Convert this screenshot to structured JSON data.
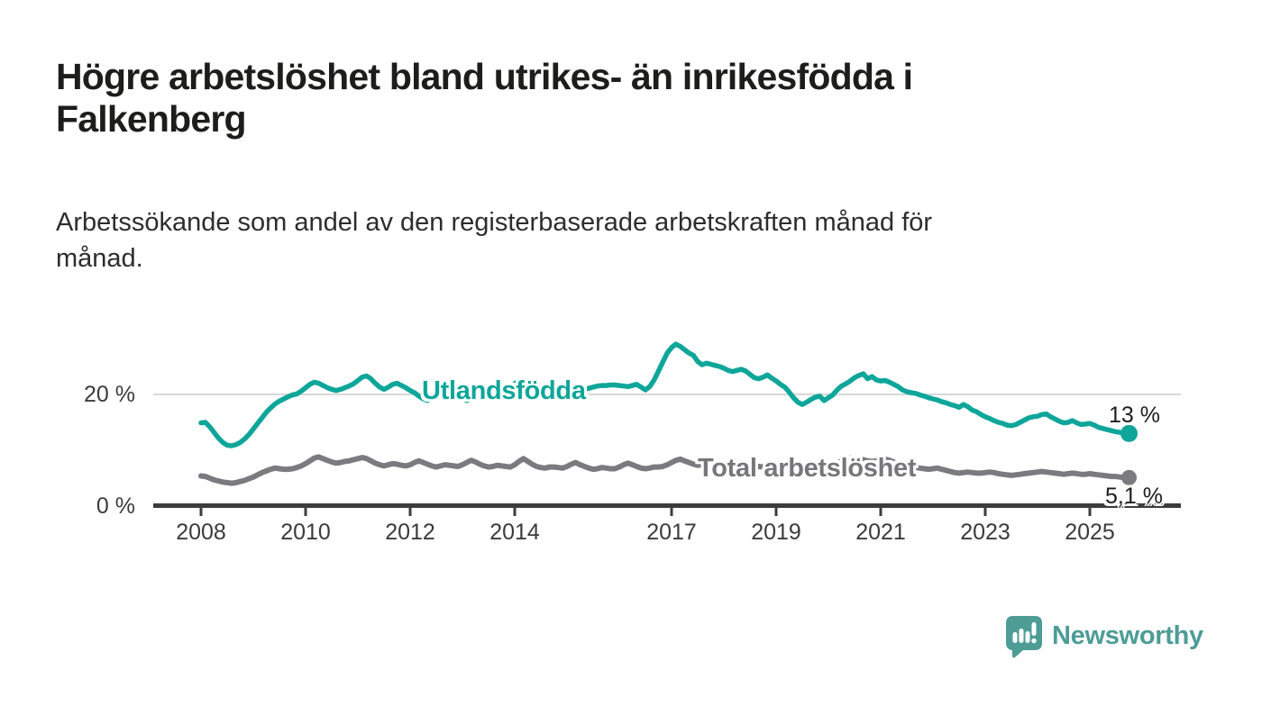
{
  "header": {
    "title": "Högre arbetslöshet bland utrikes- än inrikesfödda i\nFalkenberg",
    "subtitle": "Arbetssökande som andel av den registerbaserade arbetskraften månad för\nmånad."
  },
  "footer": {
    "brand": "Newsworthy",
    "brand_color": "#4d9c96",
    "logo_icon": "speech-bubble-with-bar-chart-and-exclamation"
  },
  "chart_data": {
    "type": "line",
    "unit": "%",
    "frequency": "monthly",
    "x_start": "2008-01",
    "x_end": "2025-10",
    "grid": "horizontal-at-20-only",
    "legend_position": "inline-labels-on-lines",
    "x_axis": {
      "ticks": [
        2008,
        2010,
        2012,
        2014,
        2017,
        2019,
        2021,
        2023,
        2025
      ]
    },
    "y_axis": {
      "labels": [
        "0 %",
        "20 %"
      ],
      "tick_values": [
        0,
        20
      ],
      "range": [
        0,
        32
      ],
      "gridlines": [
        20
      ]
    },
    "series": [
      {
        "name": "Utlandsfödda",
        "color": "#0fa69a",
        "end_label": "13 %",
        "end_value": 13,
        "values": [
          14.9,
          15.0,
          14.2,
          13.2,
          12.2,
          11.4,
          10.9,
          10.8,
          11.0,
          11.4,
          12.0,
          12.8,
          13.8,
          14.8,
          15.8,
          16.8,
          17.6,
          18.3,
          18.8,
          19.2,
          19.6,
          19.9,
          20.1,
          20.6,
          21.2,
          21.8,
          22.2,
          22.0,
          21.6,
          21.2,
          20.9,
          20.7,
          20.9,
          21.2,
          21.5,
          21.9,
          22.5,
          23.1,
          23.3,
          22.8,
          22.0,
          21.3,
          20.9,
          21.3,
          21.8,
          22.0,
          21.6,
          21.2,
          20.7,
          20.3,
          19.7,
          19.2,
          18.9,
          19.3,
          19.9,
          20.6,
          21.1,
          20.7,
          20.2,
          19.8,
          19.4,
          18.9,
          19.2,
          19.7,
          20.3,
          20.8,
          21.3,
          21.1,
          20.8,
          20.6,
          20.9,
          21.3,
          21.9,
          22.5,
          22.3,
          21.7,
          21.0,
          20.5,
          20.1,
          19.8,
          19.9,
          20.1,
          20.0,
          19.9,
          20.0,
          20.2,
          20.5,
          20.7,
          20.9,
          21.1,
          21.3,
          21.5,
          21.6,
          21.6,
          21.7,
          21.7,
          21.6,
          21.5,
          21.4,
          21.6,
          21.8,
          21.3,
          20.8,
          21.4,
          22.6,
          24.2,
          25.8,
          27.4,
          28.4,
          29.0,
          28.6,
          28.0,
          27.4,
          27.0,
          25.9,
          25.3,
          25.6,
          25.4,
          25.2,
          25.0,
          24.7,
          24.3,
          24.1,
          24.3,
          24.5,
          24.2,
          23.6,
          23.0,
          22.8,
          23.1,
          23.5,
          22.9,
          22.4,
          21.8,
          21.3,
          20.4,
          19.4,
          18.6,
          18.2,
          18.6,
          19.1,
          19.5,
          19.7,
          18.9,
          19.4,
          19.9,
          20.8,
          21.5,
          21.9,
          22.4,
          23.0,
          23.4,
          23.7,
          22.8,
          23.2,
          22.6,
          22.4,
          22.5,
          22.2,
          21.8,
          21.4,
          20.8,
          20.5,
          20.3,
          20.2,
          19.9,
          19.7,
          19.4,
          19.2,
          19.0,
          18.7,
          18.5,
          18.2,
          18.0,
          17.7,
          18.2,
          17.8,
          17.2,
          16.9,
          16.4,
          16.0,
          15.7,
          15.3,
          15.0,
          14.8,
          14.5,
          14.4,
          14.6,
          15.0,
          15.4,
          15.8,
          16.0,
          16.1,
          16.4,
          16.5,
          16.0,
          15.6,
          15.2,
          14.9,
          15.0,
          15.3,
          14.9,
          14.6,
          14.7,
          14.8,
          14.5,
          14.1,
          13.9,
          13.7,
          13.5,
          13.3,
          13.2,
          13.1,
          13.0
        ]
      },
      {
        "name": "Total arbetslöshet",
        "color": "#7b7b7f",
        "end_label": "5,1 %",
        "end_value": 5.1,
        "values": [
          5.4,
          5.3,
          5.0,
          4.7,
          4.5,
          4.3,
          4.2,
          4.1,
          4.2,
          4.4,
          4.6,
          4.9,
          5.2,
          5.6,
          6.0,
          6.3,
          6.6,
          6.8,
          6.7,
          6.6,
          6.6,
          6.7,
          6.9,
          7.2,
          7.6,
          8.1,
          8.6,
          8.8,
          8.5,
          8.2,
          7.9,
          7.7,
          7.8,
          8.0,
          8.1,
          8.3,
          8.5,
          8.7,
          8.5,
          8.1,
          7.7,
          7.4,
          7.2,
          7.4,
          7.6,
          7.5,
          7.3,
          7.2,
          7.4,
          7.8,
          8.1,
          7.8,
          7.5,
          7.2,
          7.0,
          7.2,
          7.4,
          7.3,
          7.2,
          7.1,
          7.4,
          7.8,
          8.2,
          7.9,
          7.5,
          7.2,
          7.0,
          7.1,
          7.3,
          7.2,
          7.1,
          7.0,
          7.4,
          8.0,
          8.5,
          8.0,
          7.5,
          7.1,
          6.9,
          6.8,
          7.0,
          7.0,
          6.9,
          6.8,
          7.1,
          7.5,
          7.8,
          7.4,
          7.1,
          6.8,
          6.6,
          6.7,
          6.9,
          6.8,
          6.7,
          6.7,
          7.0,
          7.4,
          7.7,
          7.4,
          7.1,
          6.8,
          6.7,
          6.8,
          7.0,
          7.0,
          7.1,
          7.4,
          7.8,
          8.2,
          8.4,
          8.1,
          7.8,
          7.5,
          7.3,
          7.4,
          7.5,
          7.4,
          7.3,
          7.3,
          7.5,
          7.8,
          8.0,
          7.7,
          7.4,
          7.1,
          6.9,
          7.0,
          7.1,
          7.0,
          6.9,
          6.9,
          7.1,
          7.4,
          7.6,
          7.3,
          7.0,
          6.7,
          6.5,
          6.6,
          6.7,
          6.7,
          6.6,
          6.7,
          6.9,
          7.1,
          7.6,
          8.1,
          8.4,
          8.6,
          8.5,
          8.4,
          8.3,
          8.1,
          8.0,
          8.1,
          8.3,
          8.4,
          8.2,
          7.9,
          7.6,
          7.3,
          7.1,
          7.0,
          6.9,
          6.8,
          6.7,
          6.6,
          6.7,
          6.8,
          6.6,
          6.4,
          6.2,
          6.0,
          5.9,
          6.0,
          6.1,
          6.0,
          5.9,
          5.9,
          6.0,
          6.1,
          6.0,
          5.8,
          5.7,
          5.6,
          5.5,
          5.6,
          5.7,
          5.8,
          5.9,
          6.0,
          6.1,
          6.2,
          6.1,
          6.0,
          5.9,
          5.8,
          5.7,
          5.8,
          5.9,
          5.8,
          5.7,
          5.7,
          5.8,
          5.7,
          5.6,
          5.5,
          5.4,
          5.3,
          5.3,
          5.2,
          5.1,
          5.1
        ]
      }
    ]
  }
}
